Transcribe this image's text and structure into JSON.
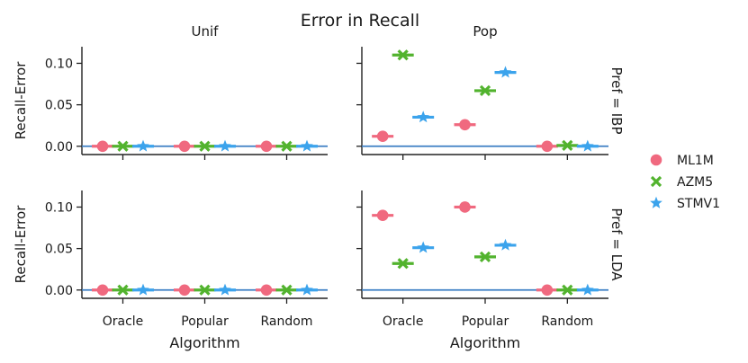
{
  "chart_data": {
    "type": "scatter",
    "title": "Error in Recall",
    "columns": [
      "Unif",
      "Pop"
    ],
    "rows": [
      "Pref = IBP",
      "Pref = LDA"
    ],
    "categories": [
      "Oracle",
      "Popular",
      "Random"
    ],
    "xlabel": "Algorithm",
    "ylabel": "Recall-Error",
    "ylim": [
      -0.01,
      0.12
    ],
    "yticks": [
      0.0,
      0.05,
      0.1
    ],
    "ytick_labels": [
      "0.00",
      "0.05",
      "0.10"
    ],
    "reference_line": 0,
    "grid": false,
    "legend_position": "right",
    "series": [
      {
        "name": "ML1M",
        "marker": "circle",
        "color": "#f0697f",
        "panels": {
          "IBP|Unif": [
            0,
            0,
            0
          ],
          "IBP|Pop": [
            0.012,
            0.026,
            0
          ],
          "LDA|Unif": [
            0,
            0,
            0
          ],
          "LDA|Pop": [
            0.09,
            0.1,
            0
          ]
        }
      },
      {
        "name": "AZM5",
        "marker": "x",
        "color": "#52b32e",
        "panels": {
          "IBP|Unif": [
            0,
            0,
            0
          ],
          "IBP|Pop": [
            0.11,
            0.067,
            0.001
          ],
          "LDA|Unif": [
            0,
            0,
            0
          ],
          "LDA|Pop": [
            0.032,
            0.04,
            0
          ]
        }
      },
      {
        "name": "STMV1",
        "marker": "star",
        "color": "#3ba3ec",
        "panels": {
          "IBP|Unif": [
            0,
            0,
            0
          ],
          "IBP|Pop": [
            0.035,
            0.089,
            0
          ],
          "LDA|Unif": [
            0,
            0,
            0
          ],
          "LDA|Pop": [
            0.051,
            0.054,
            0
          ]
        }
      }
    ]
  }
}
